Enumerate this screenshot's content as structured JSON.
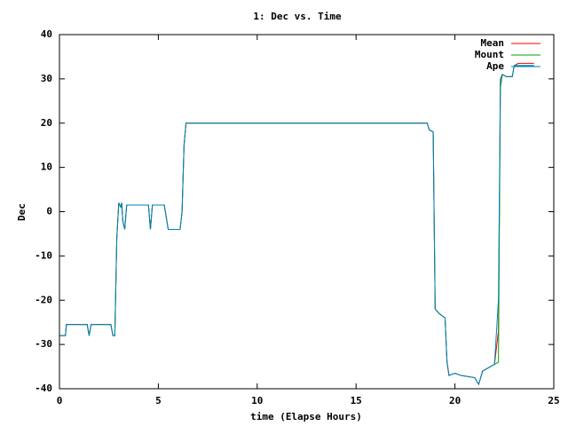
{
  "chart_data": {
    "type": "line",
    "title": "1: Dec vs. Time",
    "x_label": "time (Elapse Hours)",
    "y_label": "Dec",
    "x": [
      0,
      0.3,
      0.35,
      1.4,
      1.5,
      1.6,
      2.6,
      2.7,
      2.8,
      2.9,
      3.0,
      3.1,
      3.15,
      3.2,
      3.3,
      3.4,
      4.5,
      4.6,
      4.7,
      5.3,
      5.5,
      6.1,
      6.2,
      6.3,
      6.4,
      18.6,
      18.7,
      18.9,
      19.0,
      19.2,
      19.5,
      19.6,
      19.7,
      20.0,
      20.3,
      21.0,
      21.2,
      21.4,
      21.8,
      22.0,
      22.2,
      22.3,
      22.4,
      22.6,
      22.9,
      23.0,
      23.2,
      24.0
    ],
    "series": [
      {
        "name": "Mean",
        "color": "#ff0000",
        "values": [
          -28,
          -28,
          -25.5,
          -25.5,
          -28,
          -25.5,
          -25.5,
          -28,
          -28,
          -6,
          2,
          1,
          2,
          -2,
          -4,
          1.5,
          1.5,
          -4,
          1.5,
          1.5,
          -4,
          -4,
          0,
          15,
          20,
          20,
          18.5,
          18,
          -22,
          -23,
          -24,
          -34,
          -37,
          -36.5,
          -37,
          -37.5,
          -39,
          -36,
          -35,
          -34.5,
          -27,
          30,
          31,
          30.5,
          30.5,
          33,
          33.5,
          33.5
        ]
      },
      {
        "name": "Mount",
        "color": "#00a000",
        "values": [
          -28,
          -28,
          -25.5,
          -25.5,
          -28,
          -25.5,
          -25.5,
          -28,
          -28,
          -6,
          2,
          1,
          2,
          -2,
          -4,
          1.5,
          1.5,
          -4,
          1.5,
          1.5,
          -4,
          -4,
          0,
          15,
          20,
          20,
          18.5,
          18,
          -22,
          -23,
          -24,
          -34,
          -37,
          -36.5,
          -37,
          -37.5,
          -39,
          -36,
          -35,
          -34.5,
          -34,
          28,
          31,
          30.5,
          30.5,
          33,
          33,
          33
        ]
      },
      {
        "name": "Ape",
        "color": "#0080c0",
        "values": [
          -28,
          -28,
          -25.5,
          -25.5,
          -28,
          -25.5,
          -25.5,
          -28,
          -28,
          -6,
          2,
          1,
          2,
          -2,
          -4,
          1.5,
          1.5,
          -4,
          1.5,
          1.5,
          -4,
          -4,
          0,
          15,
          20,
          20,
          18.5,
          18,
          -22,
          -23,
          -24,
          -34,
          -37,
          -36.5,
          -37,
          -37.5,
          -39,
          -36,
          -35,
          -34.5,
          -20,
          30,
          31,
          30.5,
          30.5,
          33,
          33,
          33
        ]
      }
    ],
    "xlim": [
      0,
      25
    ],
    "xticks": [
      0,
      5,
      10,
      15,
      20,
      25
    ],
    "ylim": [
      -40,
      40
    ],
    "yticks": [
      -40,
      -30,
      -20,
      -10,
      0,
      10,
      20,
      30,
      40
    ],
    "grid": false,
    "legend": "top-right"
  }
}
